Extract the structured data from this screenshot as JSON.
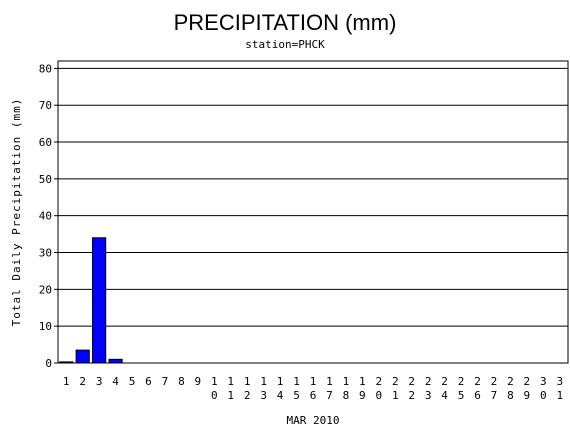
{
  "chart_data": {
    "type": "bar",
    "title": "PRECIPITATION (mm)",
    "subtitle": "station=PHCK",
    "x_label": "MAR 2010",
    "y_label": "Total Daily Precipitation (mm)",
    "categories": [
      "1",
      "2",
      "3",
      "4",
      "5",
      "6",
      "7",
      "8",
      "9",
      "10",
      "11",
      "12",
      "13",
      "14",
      "15",
      "16",
      "17",
      "18",
      "19",
      "20",
      "21",
      "22",
      "23",
      "24",
      "25",
      "26",
      "27",
      "28",
      "29",
      "30",
      "31"
    ],
    "values": [
      0.3,
      3.5,
      34,
      1,
      0,
      0,
      0,
      0,
      0,
      0,
      0,
      0,
      0,
      0,
      0,
      0,
      0,
      0,
      0,
      0,
      0,
      0,
      0,
      0,
      0,
      0,
      0,
      0,
      0,
      0,
      0
    ],
    "color": "#0000ff",
    "ylim": [
      0,
      82
    ],
    "yticks": [
      0,
      10,
      20,
      30,
      40,
      50,
      60,
      70,
      80
    ],
    "grid": true
  }
}
